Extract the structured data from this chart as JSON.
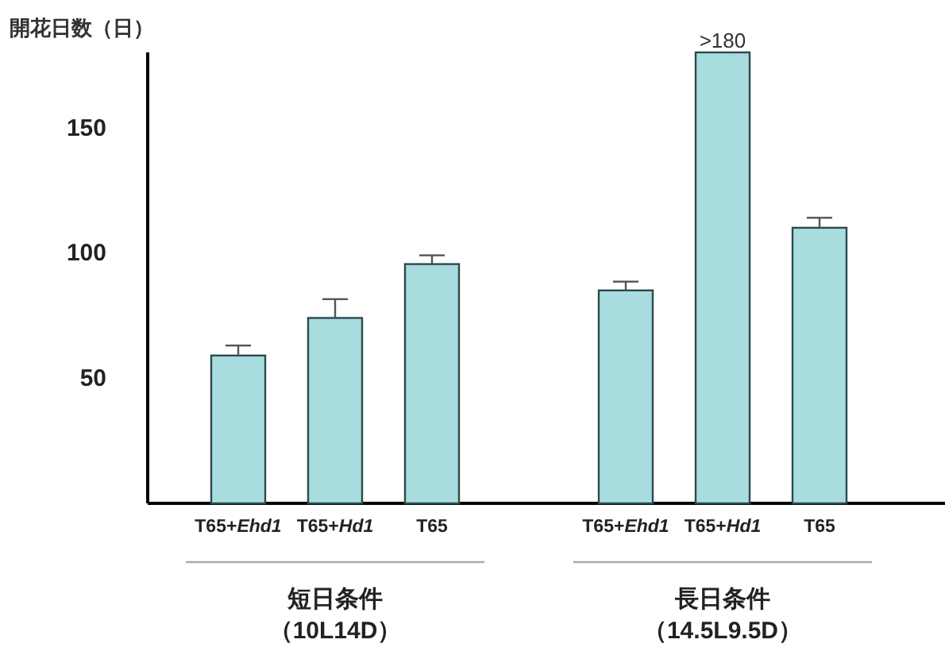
{
  "chart_data": {
    "type": "bar",
    "ylabel": "開花日数（日）",
    "categories": [
      "T65+*Ehd1*",
      "T65+*Hd1*",
      "T65",
      null,
      "T65+*Ehd1*",
      "T65+*Hd1*",
      "T65"
    ],
    "values": [
      59,
      74,
      95.5,
      null,
      85,
      180,
      110
    ],
    "errors": [
      4,
      7.5,
      3.5,
      null,
      3.5,
      null,
      4
    ],
    "value_labels": [
      null,
      null,
      null,
      null,
      null,
      ">180",
      null
    ],
    "color": "#a8dcdf",
    "ylim": [
      0,
      180
    ],
    "yticks": [
      50,
      100,
      150
    ],
    "grid": false,
    "annotations": [
      "短日条件",
      "（10L14D）",
      "長日条件",
      "（14.5L9.5D）"
    ]
  }
}
